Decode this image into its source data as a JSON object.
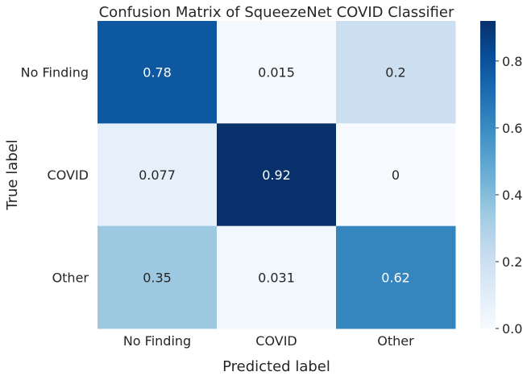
{
  "chart_data": {
    "type": "heatmap",
    "title": "Confusion Matrix of SqueezeNet COVID Classifier",
    "xlabel": "Predicted label",
    "ylabel": "True label",
    "x_categories": [
      "No Finding",
      "COVID",
      "Other"
    ],
    "y_categories": [
      "No Finding",
      "COVID",
      "Other"
    ],
    "values": [
      [
        0.78,
        0.015,
        0.2
      ],
      [
        0.077,
        0.92,
        0
      ],
      [
        0.35,
        0.031,
        0.62
      ]
    ],
    "value_labels": [
      [
        "0.78",
        "0.015",
        "0.2"
      ],
      [
        "0.077",
        "0.92",
        "0"
      ],
      [
        "0.35",
        "0.031",
        "0.62"
      ]
    ],
    "colorbar": {
      "min": 0,
      "max": 0.92,
      "ticks": [
        0.0,
        0.2,
        0.4,
        0.6,
        0.8
      ],
      "tick_labels": [
        "0.0",
        "0.2",
        "0.4",
        "0.6",
        "0.8"
      ]
    },
    "colormap": "Blues",
    "colormap_stops": [
      "#f7fbff",
      "#deebf7",
      "#c6dbef",
      "#9ecae1",
      "#6baed6",
      "#4292c6",
      "#2171b5",
      "#08519c",
      "#08306b"
    ],
    "grid": false
  }
}
